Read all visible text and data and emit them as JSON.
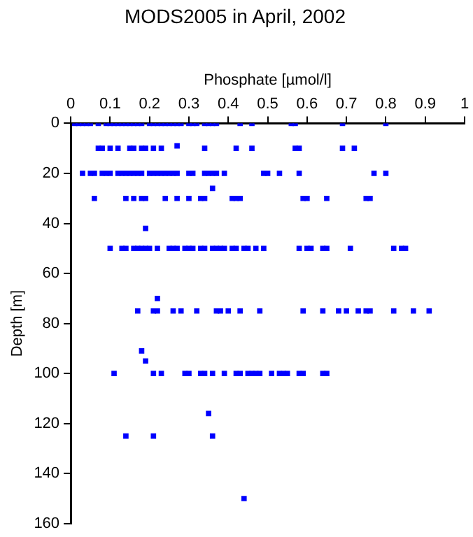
{
  "chart_data": {
    "type": "scatter",
    "title": "MODS2005 in April, 2002",
    "xlabel": "Phosphate [µmol/l]",
    "ylabel": "Depth [m]",
    "xlim": [
      0,
      1
    ],
    "xticks": [
      0,
      0.1,
      0.2,
      0.3,
      0.4,
      0.5,
      0.6,
      0.7,
      0.8,
      0.9,
      1
    ],
    "ylim": [
      160,
      0
    ],
    "yticks": [
      0,
      20,
      40,
      60,
      80,
      100,
      120,
      140,
      160
    ],
    "grid": false,
    "legend": false,
    "marker": "square",
    "series": [
      {
        "color": "#0000ff",
        "x": [
          0.01,
          0.02,
          0.03,
          0.04,
          0.05,
          0.07,
          0.09,
          0.1,
          0.11,
          0.12,
          0.13,
          0.14,
          0.15,
          0.16,
          0.17,
          0.18,
          0.2,
          0.21,
          0.22,
          0.23,
          0.24,
          0.25,
          0.26,
          0.27,
          0.28,
          0.3,
          0.31,
          0.32,
          0.34,
          0.35,
          0.36,
          0.37,
          0.43,
          0.46,
          0.56,
          0.57,
          0.69,
          0.8
        ],
        "values": [
          0,
          0,
          0,
          0,
          0,
          0,
          0,
          0,
          0,
          0,
          0,
          0,
          0,
          0,
          0,
          0,
          0,
          0,
          0,
          0,
          0,
          0,
          0,
          0,
          0,
          0,
          0,
          0,
          0,
          0,
          0,
          0,
          0,
          0,
          0,
          0,
          0,
          0
        ]
      },
      {
        "color": "#0000ff",
        "x": [
          0.07,
          0.08,
          0.1,
          0.12,
          0.15,
          0.16,
          0.18,
          0.19,
          0.21,
          0.23,
          0.34,
          0.42,
          0.46,
          0.57,
          0.58,
          0.69,
          0.72,
          0.27
        ],
        "values": [
          10,
          10,
          10,
          10,
          10,
          10,
          10,
          10,
          10,
          10,
          10,
          10,
          10,
          10,
          10,
          10,
          10,
          9
        ]
      },
      {
        "color": "#0000ff",
        "x": [
          0.03,
          0.05,
          0.06,
          0.08,
          0.09,
          0.1,
          0.12,
          0.13,
          0.14,
          0.15,
          0.16,
          0.17,
          0.18,
          0.2,
          0.21,
          0.22,
          0.23,
          0.24,
          0.25,
          0.26,
          0.27,
          0.3,
          0.31,
          0.34,
          0.35,
          0.36,
          0.37,
          0.39,
          0.49,
          0.5,
          0.53,
          0.58,
          0.77,
          0.8,
          0.36
        ],
        "values": [
          20,
          20,
          20,
          20,
          20,
          20,
          20,
          20,
          20,
          20,
          20,
          20,
          20,
          20,
          20,
          20,
          20,
          20,
          20,
          20,
          20,
          20,
          20,
          20,
          20,
          20,
          20,
          20,
          20,
          20,
          20,
          20,
          20,
          20,
          26
        ]
      },
      {
        "color": "#0000ff",
        "x": [
          0.06,
          0.14,
          0.16,
          0.18,
          0.19,
          0.24,
          0.27,
          0.3,
          0.33,
          0.34,
          0.41,
          0.42,
          0.43,
          0.59,
          0.6,
          0.65,
          0.75,
          0.76,
          0.19
        ],
        "values": [
          30,
          30,
          30,
          30,
          30,
          30,
          30,
          30,
          30,
          30,
          30,
          30,
          30,
          30,
          30,
          30,
          30,
          30,
          42
        ]
      },
      {
        "color": "#0000ff",
        "x": [
          0.1,
          0.13,
          0.14,
          0.16,
          0.17,
          0.18,
          0.19,
          0.2,
          0.22,
          0.25,
          0.26,
          0.27,
          0.29,
          0.3,
          0.31,
          0.33,
          0.34,
          0.36,
          0.37,
          0.38,
          0.39,
          0.41,
          0.42,
          0.44,
          0.45,
          0.47,
          0.49,
          0.58,
          0.6,
          0.61,
          0.64,
          0.65,
          0.71,
          0.82,
          0.84,
          0.85
        ],
        "values": [
          50,
          50,
          50,
          50,
          50,
          50,
          50,
          50,
          50,
          50,
          50,
          50,
          50,
          50,
          50,
          50,
          50,
          50,
          50,
          50,
          50,
          50,
          50,
          50,
          50,
          50,
          50,
          50,
          50,
          50,
          50,
          50,
          50,
          50,
          50,
          50
        ]
      },
      {
        "color": "#0000ff",
        "x": [
          0.22,
          0.17,
          0.21,
          0.22,
          0.26,
          0.28,
          0.32,
          0.37,
          0.38,
          0.4,
          0.43,
          0.48,
          0.59,
          0.64,
          0.68,
          0.7,
          0.73,
          0.75,
          0.76,
          0.82,
          0.87,
          0.91,
          0.18,
          0.19
        ],
        "values": [
          70,
          75,
          75,
          75,
          75,
          75,
          75,
          75,
          75,
          75,
          75,
          75,
          75,
          75,
          75,
          75,
          75,
          75,
          75,
          75,
          75,
          75,
          91,
          95
        ]
      },
      {
        "color": "#0000ff",
        "x": [
          0.11,
          0.21,
          0.23,
          0.29,
          0.3,
          0.33,
          0.34,
          0.36,
          0.39,
          0.42,
          0.43,
          0.45,
          0.46,
          0.47,
          0.48,
          0.51,
          0.53,
          0.54,
          0.55,
          0.58,
          0.59,
          0.64,
          0.65
        ],
        "values": [
          100,
          100,
          100,
          100,
          100,
          100,
          100,
          100,
          100,
          100,
          100,
          100,
          100,
          100,
          100,
          100,
          100,
          100,
          100,
          100,
          100,
          100,
          100
        ]
      },
      {
        "color": "#0000ff",
        "x": [
          0.35,
          0.14,
          0.21,
          0.36,
          0.44
        ],
        "values": [
          116,
          125,
          125,
          125,
          150
        ]
      }
    ]
  }
}
